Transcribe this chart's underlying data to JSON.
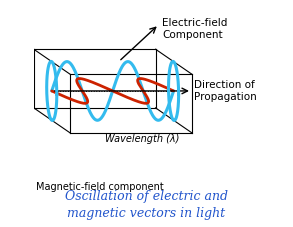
{
  "title": "Oscillation of electric and\nmagnetic vectors in light",
  "title_fontsize": 9,
  "title_color": "#2255cc",
  "electric_color": "#33bbee",
  "magnetic_color": "#cc2200",
  "label_electric": "Electric-field\nComponent",
  "label_magnetic": "Magnetic-field component",
  "label_propagation": "Direction of\nPropagation",
  "label_wavelength": "Wavelength (λ)",
  "background_color": "#ffffff",
  "proj_ox": 0.08,
  "proj_oy": 0.6,
  "proj_sx": 0.135,
  "proj_sy": 0.13,
  "proj_szx": 0.08,
  "proj_szy": 0.055
}
